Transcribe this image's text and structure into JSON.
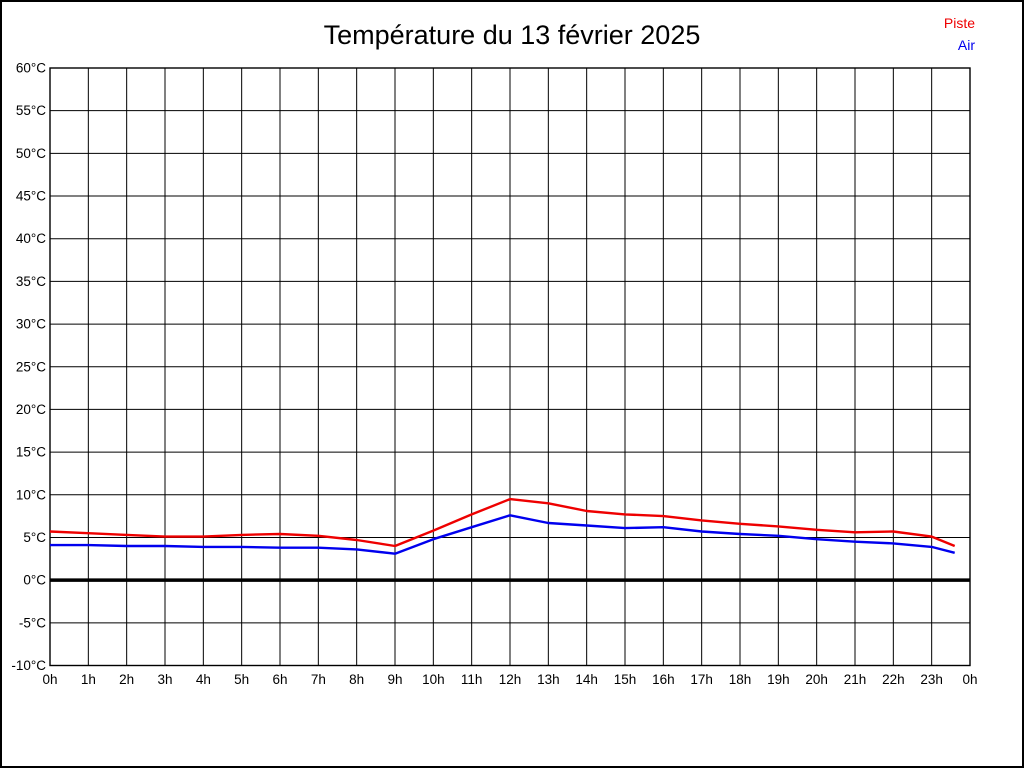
{
  "title": "Température du 13 février 2025",
  "legend": {
    "piste": {
      "label": "Piste",
      "color": "#ee0000"
    },
    "air": {
      "label": "Air",
      "color": "#0000ee"
    }
  },
  "chart_data": {
    "type": "line",
    "title": "Température du 13 février 2025",
    "xlabel": "",
    "ylabel": "",
    "xlim": [
      0,
      24
    ],
    "ylim": [
      -10,
      60
    ],
    "y_tick_step": 5,
    "grid": true,
    "zero_line_at": 0,
    "legend_position": "top-right",
    "x_tick_labels": [
      "0h",
      "1h",
      "2h",
      "3h",
      "4h",
      "5h",
      "6h",
      "7h",
      "8h",
      "9h",
      "10h",
      "11h",
      "12h",
      "13h",
      "14h",
      "15h",
      "16h",
      "17h",
      "18h",
      "19h",
      "20h",
      "21h",
      "22h",
      "23h",
      "0h"
    ],
    "y_tick_labels": [
      "60°C",
      "55°C",
      "50°C",
      "45°C",
      "40°C",
      "35°C",
      "30°C",
      "25°C",
      "20°C",
      "15°C",
      "10°C",
      "5°C",
      "0°C",
      "-5°C",
      "-10°C"
    ],
    "x": [
      0,
      1,
      2,
      3,
      4,
      5,
      6,
      7,
      8,
      9,
      10,
      11,
      12,
      13,
      14,
      15,
      16,
      17,
      18,
      19,
      20,
      21,
      22,
      23,
      23.6
    ],
    "series": [
      {
        "name": "Piste",
        "color": "#ee0000",
        "values": [
          5.7,
          5.5,
          5.3,
          5.1,
          5.1,
          5.3,
          5.4,
          5.2,
          4.7,
          4.0,
          5.8,
          7.7,
          9.5,
          9.0,
          8.1,
          7.7,
          7.5,
          7.0,
          6.6,
          6.3,
          5.9,
          5.6,
          5.7,
          5.1,
          4.0
        ]
      },
      {
        "name": "Air",
        "color": "#0000ee",
        "values": [
          4.1,
          4.1,
          4.0,
          4.0,
          3.9,
          3.9,
          3.8,
          3.8,
          3.6,
          3.1,
          4.8,
          6.2,
          7.6,
          6.7,
          6.4,
          6.1,
          6.2,
          5.7,
          5.4,
          5.2,
          4.8,
          4.5,
          4.3,
          3.9,
          3.2
        ]
      }
    ]
  }
}
